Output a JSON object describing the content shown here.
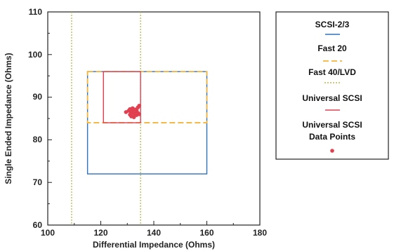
{
  "chart_data": {
    "type": "scatter",
    "title": "",
    "xlabel": "Differential Impedance (Ohms)",
    "ylabel": "Single Ended Impedance (Ohms)",
    "xlim": [
      100,
      180
    ],
    "ylim": [
      60,
      110
    ],
    "x_ticks": [
      "100",
      "120",
      "140",
      "160",
      "180"
    ],
    "y_ticks": [
      "60",
      "70",
      "80",
      "90",
      "100",
      "110"
    ],
    "grid": false,
    "legend_position": "right",
    "series": [
      {
        "name": "SCSI-2/3",
        "kind": "rect",
        "style": "solid",
        "color": "#2f72c0",
        "x": [
          115,
          160
        ],
        "y": [
          72,
          96
        ]
      },
      {
        "name": "Fast 20",
        "kind": "rect",
        "style": "dashed",
        "color": "#f4b43a",
        "x": [
          115,
          160
        ],
        "y": [
          84,
          96
        ]
      },
      {
        "name": "Fast 40/LVD",
        "kind": "vlines",
        "style": "dotted",
        "color": "#b8b94a",
        "x": [
          109,
          135
        ],
        "y": [
          60,
          110
        ]
      },
      {
        "name": "Universal SCSI",
        "kind": "rect",
        "style": "solid",
        "color": "#e04050",
        "x": [
          121,
          135
        ],
        "y": [
          84,
          96
        ]
      },
      {
        "name": "Universal SCSI Data Points",
        "kind": "points",
        "color": "#e04050",
        "points": [
          [
            129.5,
            86.5
          ],
          [
            130.5,
            86.8
          ],
          [
            131,
            87.2
          ],
          [
            131.5,
            86.4
          ],
          [
            131.5,
            85.5
          ],
          [
            132,
            87.4
          ],
          [
            132,
            86.8
          ],
          [
            132.5,
            86.1
          ],
          [
            133,
            87.1
          ],
          [
            133,
            86.5
          ],
          [
            133.5,
            85.8
          ],
          [
            133.5,
            86.9
          ],
          [
            134,
            86.3
          ],
          [
            134,
            87.6
          ],
          [
            134.5,
            86.0
          ],
          [
            134.5,
            88.0
          ],
          [
            132.5,
            85.3
          ],
          [
            131,
            85.9
          ],
          [
            133,
            86.0
          ],
          [
            132.2,
            86.6
          ]
        ]
      }
    ]
  },
  "legend": {
    "items": [
      {
        "label": "SCSI-2/3"
      },
      {
        "label": "Fast 20"
      },
      {
        "label": "Fast 40/LVD"
      },
      {
        "label": "Universal SCSI"
      },
      {
        "label_line1": "Universal SCSI",
        "label_line2": "Data Points"
      }
    ]
  }
}
